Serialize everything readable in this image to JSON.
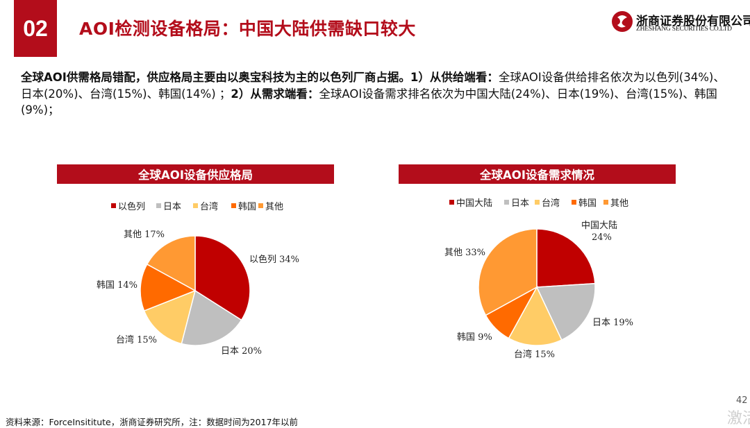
{
  "section_number": "02",
  "title": "AOI检测设备格局：中国大陆供需缺口较大",
  "logo": {
    "cn": "浙商证券股份有限公司",
    "en": "ZHESHANG SECURITIES CO.LTD"
  },
  "description": {
    "bold1": "全球AOI供需格局错配，供应格局主要由以奥宝科技为主的以色列厂商占据。1）从供给端看：",
    "text1": "全球AOI设备供给排名依次为以色列(34%)、日本(20%)、台湾(15%)、韩国(14%) ；",
    "bold2": "2）从需求端看：",
    "text2": "全球AOI设备需求排名依次为中国大陆(24%)、日本(19%)、台湾(15%)、韩国(9%)；"
  },
  "source": "资料来源：ForceInsititute，浙商证券研究所，注：数据时间为2017年以前",
  "page_number": "42",
  "watermark": "激活",
  "colors": {
    "brand_red": "#b30d1b",
    "pie_dark_red": "#c00000",
    "pie_gray": "#bfbfbf",
    "pie_yellow": "#ffcc66",
    "pie_orange": "#ff6a00",
    "pie_light_orange": "#ff9933"
  },
  "chart_data": [
    {
      "type": "pie",
      "title": "全球AOI设备供应格局",
      "legend_position": "top",
      "slices": [
        {
          "label": "以色列",
          "value": 34,
          "display": "以色列 34%",
          "color": "#c00000"
        },
        {
          "label": "日本",
          "value": 20,
          "display": "日本 20%",
          "color": "#bfbfbf"
        },
        {
          "label": "台湾",
          "value": 15,
          "display": "台湾 15%",
          "color": "#ffcc66"
        },
        {
          "label": "韩国",
          "value": 14,
          "display": "韩国 14%",
          "color": "#ff6a00"
        },
        {
          "label": "其他",
          "value": 17,
          "display": "其他 17%",
          "color": "#ff9933"
        }
      ]
    },
    {
      "type": "pie",
      "title": "全球AOI设备需求情况",
      "legend_position": "top",
      "slices": [
        {
          "label": "中国大陆",
          "value": 24,
          "display_line1": "中国大陆",
          "display_line2": "24%",
          "color": "#c00000"
        },
        {
          "label": "日本",
          "value": 19,
          "display": "日本 19%",
          "color": "#bfbfbf"
        },
        {
          "label": "台湾",
          "value": 15,
          "display": "台湾 15%",
          "color": "#ffcc66"
        },
        {
          "label": "韩国",
          "value": 9,
          "display": "韩国 9%",
          "color": "#ff6a00"
        },
        {
          "label": "其他",
          "value": 33,
          "display": "其他 33%",
          "color": "#ff9933"
        }
      ]
    }
  ]
}
